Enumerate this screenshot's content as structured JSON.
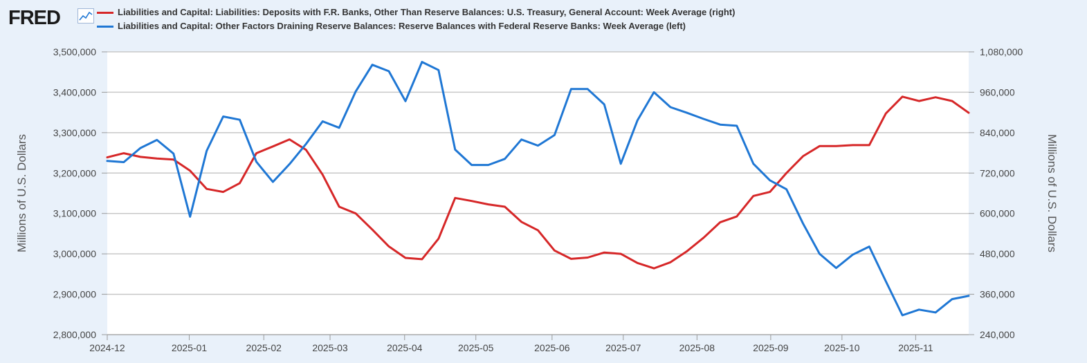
{
  "header": {
    "logo_text": "FRED",
    "logo_icon": "line-chart-icon"
  },
  "colors": {
    "treasury": "#d62728",
    "reserves": "#1f77d4",
    "grid": "#c8c8c8",
    "plot_bg": "#ffffff"
  },
  "chart_data": {
    "type": "line",
    "title": "",
    "x_tick_labels": [
      "2024-12",
      "2025-01",
      "2025-02",
      "2025-03",
      "2025-04",
      "2025-05",
      "2025-06",
      "2025-07",
      "2025-08",
      "2025-09",
      "2025-10",
      "2025-11"
    ],
    "left_axis": {
      "label": "Millions of U.S. Dollars",
      "range": [
        2800000,
        3500000
      ],
      "ticks": [
        "2,800,000",
        "2,900,000",
        "3,000,000",
        "3,100,000",
        "3,200,000",
        "3,300,000",
        "3,400,000",
        "3,500,000"
      ]
    },
    "right_axis": {
      "label": "Millions of U.S. Dollars",
      "range": [
        240000,
        1080000
      ],
      "ticks": [
        "240,000",
        "360,000",
        "480,000",
        "600,000",
        "720,000",
        "840,000",
        "960,000",
        "1,080,000"
      ]
    },
    "series": [
      {
        "name": "Liabilities and Capital: Liabilities: Deposits with F.R. Banks, Other Than Reserve Balances: U.S. Treasury, General Account: Week Average (right)",
        "axis": "right",
        "color": "#d62728",
        "values": [
          [
            0,
            766500
          ],
          [
            1,
            779000
          ],
          [
            2,
            768000
          ],
          [
            3,
            763000
          ],
          [
            4,
            760000
          ],
          [
            5,
            727000
          ],
          [
            6,
            673000
          ],
          [
            7,
            664000
          ],
          [
            8,
            690000
          ],
          [
            9,
            779000
          ],
          [
            10,
            799000
          ],
          [
            11,
            820000
          ],
          [
            12,
            789000
          ],
          [
            13,
            715000
          ],
          [
            14,
            620000
          ],
          [
            15,
            600000
          ],
          [
            16,
            552000
          ],
          [
            17,
            502000
          ],
          [
            18,
            468000
          ],
          [
            19,
            464000
          ],
          [
            20,
            525000
          ],
          [
            21,
            646000
          ],
          [
            22,
            637000
          ],
          [
            23,
            627000
          ],
          [
            24,
            620000
          ],
          [
            25,
            575000
          ],
          [
            26,
            550000
          ],
          [
            27,
            490000
          ],
          [
            28,
            465000
          ],
          [
            29,
            469000
          ],
          [
            30,
            484000
          ],
          [
            31,
            480000
          ],
          [
            32,
            453000
          ],
          [
            33,
            437000
          ],
          [
            34,
            455000
          ],
          [
            35,
            488000
          ],
          [
            36,
            528000
          ],
          [
            37,
            574000
          ],
          [
            38,
            591000
          ],
          [
            39,
            652000
          ],
          [
            40,
            664000
          ],
          [
            41,
            720000
          ],
          [
            42,
            770000
          ],
          [
            43,
            800000
          ],
          [
            44,
            800000
          ],
          [
            45,
            803000
          ],
          [
            46,
            803000
          ],
          [
            47,
            897000
          ],
          [
            48,
            947000
          ],
          [
            49,
            934000
          ],
          [
            50,
            945000
          ],
          [
            51,
            934000
          ],
          [
            52,
            899000
          ]
        ]
      },
      {
        "name": "Liabilities and Capital: Other Factors Draining Reserve Balances: Reserve Balances with Federal Reserve Banks: Week Average (left)",
        "axis": "left",
        "color": "#1f77d4",
        "values": [
          [
            0,
            3230000
          ],
          [
            1,
            3227000
          ],
          [
            2,
            3262000
          ],
          [
            3,
            3282000
          ],
          [
            4,
            3248000
          ],
          [
            5,
            3092000
          ],
          [
            6,
            3255000
          ],
          [
            7,
            3340000
          ],
          [
            8,
            3332000
          ],
          [
            9,
            3228000
          ],
          [
            10,
            3178000
          ],
          [
            11,
            3222000
          ],
          [
            12,
            3272000
          ],
          [
            13,
            3328000
          ],
          [
            14,
            3312000
          ],
          [
            15,
            3402000
          ],
          [
            16,
            3468000
          ],
          [
            17,
            3452000
          ],
          [
            18,
            3378000
          ],
          [
            19,
            3475000
          ],
          [
            20,
            3455000
          ],
          [
            21,
            3258000
          ],
          [
            22,
            3220000
          ],
          [
            23,
            3220000
          ],
          [
            24,
            3235000
          ],
          [
            25,
            3283000
          ],
          [
            26,
            3268000
          ],
          [
            27,
            3294000
          ],
          [
            28,
            3408000
          ],
          [
            29,
            3408000
          ],
          [
            30,
            3370000
          ],
          [
            31,
            3223000
          ],
          [
            32,
            3330000
          ],
          [
            33,
            3400000
          ],
          [
            34,
            3363000
          ],
          [
            35,
            3349000
          ],
          [
            36,
            3334000
          ],
          [
            37,
            3320000
          ],
          [
            38,
            3317000
          ],
          [
            39,
            3223000
          ],
          [
            40,
            3182000
          ],
          [
            41,
            3160000
          ],
          [
            42,
            3075000
          ],
          [
            43,
            3000000
          ],
          [
            44,
            2965000
          ],
          [
            45,
            2998000
          ],
          [
            46,
            3018000
          ],
          [
            47,
            2932000
          ],
          [
            48,
            2848000
          ],
          [
            49,
            2862000
          ],
          [
            50,
            2855000
          ],
          [
            51,
            2888000
          ],
          [
            52,
            2896000
          ]
        ]
      }
    ],
    "legend_position": "top-left",
    "grid": true
  }
}
